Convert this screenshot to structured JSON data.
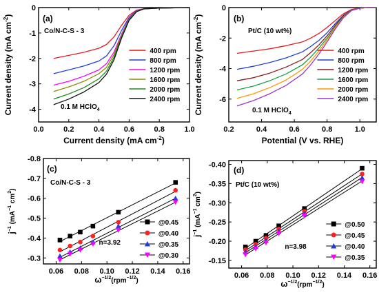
{
  "chart_data": [
    {
      "panel_label": "(a)",
      "type": "line",
      "annotation": "Co/N-C-S - 3",
      "electrolyte": "0.1 M HClO",
      "electrolyte_sub": "4",
      "xlabel": "Current density (mA cm",
      "xlabel_sup": "-2",
      "xlabel_tail": ")",
      "ylabel": "Current density (mA cm",
      "ylabel_sup": "-2",
      "ylabel_tail": ")",
      "xlim": [
        0.0,
        1.0
      ],
      "ylim": [
        -4.5,
        0
      ],
      "xticks": [
        0.0,
        0.2,
        0.4,
        0.6,
        0.8,
        1.0
      ],
      "xtick_labels": [
        "0.0",
        "0.2",
        "0.4",
        "0.6",
        "0.8",
        "1.0"
      ],
      "yticks": [
        0,
        -1,
        -2,
        -3,
        -4
      ],
      "ytick_labels": [
        "0",
        "-1",
        "-2",
        "-3",
        "-4"
      ],
      "legend_position": "right",
      "series": [
        {
          "name": "400 rpm",
          "color": "#e41a1c",
          "x": [
            0.1,
            0.2,
            0.3,
            0.4,
            0.45,
            0.5,
            0.55,
            0.6,
            0.65,
            0.7,
            0.8,
            0.9,
            1.0
          ],
          "y": [
            -2.0,
            -1.88,
            -1.76,
            -1.6,
            -1.45,
            -1.15,
            -0.7,
            -0.3,
            -0.1,
            -0.04,
            -0.02,
            -0.01,
            0
          ]
        },
        {
          "name": "800 rpm",
          "color": "#1f3fd8",
          "x": [
            0.1,
            0.2,
            0.3,
            0.4,
            0.45,
            0.5,
            0.55,
            0.6,
            0.65,
            0.7,
            0.8,
            0.9,
            1.0
          ],
          "y": [
            -2.6,
            -2.45,
            -2.3,
            -2.1,
            -1.9,
            -1.5,
            -0.9,
            -0.38,
            -0.12,
            -0.05,
            -0.02,
            -0.01,
            0
          ]
        },
        {
          "name": "1200 rpm",
          "color": "#ff00ff",
          "x": [
            0.1,
            0.2,
            0.3,
            0.4,
            0.45,
            0.5,
            0.55,
            0.6,
            0.65,
            0.7,
            0.8,
            0.9,
            1.0
          ],
          "y": [
            -3.05,
            -2.9,
            -2.7,
            -2.45,
            -2.2,
            -1.75,
            -1.05,
            -0.42,
            -0.13,
            -0.05,
            -0.02,
            -0.01,
            0
          ]
        },
        {
          "name": "1600 rpm",
          "color": "#8b8b00",
          "x": [
            0.1,
            0.2,
            0.3,
            0.4,
            0.45,
            0.5,
            0.55,
            0.6,
            0.65,
            0.7,
            0.8,
            0.9,
            1.0
          ],
          "y": [
            -3.3,
            -3.12,
            -2.9,
            -2.6,
            -2.35,
            -1.85,
            -1.1,
            -0.45,
            -0.14,
            -0.05,
            -0.02,
            -0.01,
            0
          ]
        },
        {
          "name": "2000 rpm",
          "color": "#228b22",
          "x": [
            0.1,
            0.2,
            0.3,
            0.4,
            0.45,
            0.5,
            0.55,
            0.6,
            0.65,
            0.7,
            0.8,
            0.9,
            1.0
          ],
          "y": [
            -3.6,
            -3.4,
            -3.15,
            -2.8,
            -2.5,
            -1.95,
            -1.15,
            -0.47,
            -0.15,
            -0.05,
            -0.02,
            -0.01,
            0
          ]
        },
        {
          "name": "2400 rpm",
          "color": "#111111",
          "x": [
            0.1,
            0.2,
            0.3,
            0.4,
            0.45,
            0.5,
            0.55,
            0.6,
            0.65,
            0.7,
            0.8,
            0.9,
            1.0
          ],
          "y": [
            -3.82,
            -3.6,
            -3.32,
            -2.95,
            -2.62,
            -2.05,
            -1.2,
            -0.5,
            -0.16,
            -0.05,
            -0.02,
            -0.01,
            0
          ]
        }
      ]
    },
    {
      "panel_label": "(b)",
      "type": "line",
      "annotation": "Pt/C (10 wt%)",
      "electrolyte": "0.1 M HClO",
      "electrolyte_sub": "4",
      "xlabel": "Potential (V vs. RHE)",
      "ylabel": "Current density (mA cm",
      "ylabel_sup": "-2",
      "ylabel_tail": ")",
      "xlim": [
        0.2,
        1.1
      ],
      "ylim": [
        -7.5,
        0
      ],
      "xticks": [
        0.2,
        0.4,
        0.6,
        0.8,
        1.0
      ],
      "xtick_labels": [
        "0.2",
        "0.4",
        "0.6",
        "0.8",
        "1.0"
      ],
      "yticks": [
        0,
        -2,
        -4,
        -6
      ],
      "ytick_labels": [
        "0",
        "-2",
        "-4",
        "-6"
      ],
      "legend_position": "right",
      "series": [
        {
          "name": "400 rpm",
          "color": "#e41a1c",
          "x": [
            0.25,
            0.35,
            0.45,
            0.55,
            0.65,
            0.7,
            0.75,
            0.8,
            0.85,
            0.9,
            0.95,
            1.0,
            1.05,
            1.1
          ],
          "y": [
            -3.0,
            -2.85,
            -2.7,
            -2.5,
            -2.25,
            -2.0,
            -1.7,
            -1.3,
            -0.85,
            -0.4,
            -0.12,
            -0.03,
            0,
            0
          ]
        },
        {
          "name": "800 rpm",
          "color": "#1f3fd8",
          "x": [
            0.25,
            0.35,
            0.45,
            0.55,
            0.65,
            0.7,
            0.75,
            0.8,
            0.85,
            0.9,
            0.95,
            1.0,
            1.05,
            1.1
          ],
          "y": [
            -4.05,
            -3.85,
            -3.6,
            -3.3,
            -2.9,
            -2.55,
            -2.15,
            -1.65,
            -1.05,
            -0.5,
            -0.15,
            -0.04,
            0,
            0
          ]
        },
        {
          "name": "1200 rpm",
          "color": "#8b1a1a",
          "x": [
            0.25,
            0.35,
            0.45,
            0.55,
            0.65,
            0.7,
            0.75,
            0.8,
            0.85,
            0.9,
            0.95,
            1.0,
            1.05,
            1.1
          ],
          "y": [
            -4.8,
            -4.6,
            -4.3,
            -3.9,
            -3.4,
            -2.95,
            -2.45,
            -1.85,
            -1.15,
            -0.55,
            -0.16,
            -0.04,
            0,
            0
          ]
        },
        {
          "name": "1600 rpm",
          "color": "#1a9e4a",
          "x": [
            0.25,
            0.35,
            0.45,
            0.55,
            0.65,
            0.7,
            0.75,
            0.8,
            0.85,
            0.9,
            0.95,
            1.0,
            1.05,
            1.1
          ],
          "y": [
            -5.4,
            -5.15,
            -4.8,
            -4.35,
            -3.75,
            -3.25,
            -2.65,
            -2.0,
            -1.25,
            -0.6,
            -0.17,
            -0.04,
            0,
            0
          ]
        },
        {
          "name": "2000 rpm",
          "color": "#ff9900",
          "x": [
            0.25,
            0.35,
            0.45,
            0.55,
            0.65,
            0.7,
            0.75,
            0.8,
            0.85,
            0.9,
            0.95,
            1.0,
            1.05,
            1.1
          ],
          "y": [
            -5.95,
            -5.65,
            -5.25,
            -4.75,
            -4.05,
            -3.5,
            -2.85,
            -2.12,
            -1.32,
            -0.63,
            -0.18,
            -0.04,
            0,
            0
          ]
        },
        {
          "name": "2400 rpm",
          "color": "#9933cc",
          "x": [
            0.25,
            0.35,
            0.45,
            0.55,
            0.65,
            0.7,
            0.75,
            0.8,
            0.85,
            0.9,
            0.95,
            1.0,
            1.05,
            1.1
          ],
          "y": [
            -6.45,
            -6.1,
            -5.65,
            -5.1,
            -4.35,
            -3.75,
            -3.05,
            -2.25,
            -1.4,
            -0.66,
            -0.19,
            -0.04,
            0,
            0
          ]
        }
      ]
    },
    {
      "panel_label": "(c)",
      "type": "scatter",
      "annotation": "Co/N-C-S - 3",
      "note": "n=3.92",
      "xlabel": "ω",
      "xlabel_sup": "−1/2",
      "xlabel_tail": "(rpm",
      "xlabel_sup2": "−1/2",
      "xlabel_tail2": ")",
      "ylabel": "j",
      "ylabel_sup": "−1",
      "ylabel_mid": " (mA",
      "ylabel_sup2": "−1",
      "ylabel_mid2": " cm",
      "ylabel_sup3": "2",
      "ylabel_tail": ")",
      "xlim": [
        0.05,
        0.165
      ],
      "ylim": [
        -0.27,
        -0.8
      ],
      "xticks": [
        0.06,
        0.08,
        0.1,
        0.12,
        0.14,
        0.16
      ],
      "xtick_labels": [
        "0.06",
        "0.08",
        "0.10",
        "0.12",
        "0.14",
        "0.16"
      ],
      "yticks": [
        -0.3,
        -0.4,
        -0.5,
        -0.6,
        -0.7,
        -0.8
      ],
      "ytick_labels": [
        "-0.3",
        "-0.4",
        "-0.5",
        "-0.6",
        "-0.7",
        "-0.8"
      ],
      "legend_position": "right",
      "x": [
        0.063,
        0.071,
        0.079,
        0.089,
        0.109,
        0.154
      ],
      "series": [
        {
          "name": "@0.45",
          "color": "#000000",
          "marker": "square",
          "values": [
            -0.39,
            -0.41,
            -0.43,
            -0.46,
            -0.53,
            -0.68
          ]
        },
        {
          "name": "@0.40",
          "color": "#ff2020",
          "marker": "circle",
          "values": [
            -0.34,
            -0.36,
            -0.38,
            -0.41,
            -0.48,
            -0.64
          ]
        },
        {
          "name": "@0.35",
          "color": "#1f3fd8",
          "marker": "triangle-up",
          "values": [
            -0.31,
            -0.33,
            -0.35,
            -0.38,
            -0.46,
            -0.6
          ]
        },
        {
          "name": "@0.30",
          "color": "#ff00ff",
          "marker": "triangle-down",
          "values": [
            -0.29,
            -0.32,
            -0.34,
            -0.37,
            -0.44,
            -0.58
          ]
        }
      ]
    },
    {
      "panel_label": "(d)",
      "type": "scatter",
      "annotation": "Pt/C (10 wt%)",
      "note": "n=3.98",
      "xlabel": "ω",
      "xlabel_sup": "−1/2",
      "xlabel_tail": "(rpm",
      "xlabel_sup2": "−1/2",
      "xlabel_tail2": ")",
      "ylabel": "j",
      "ylabel_sup": "−1",
      "ylabel_mid": " (mA",
      "ylabel_sup2": "−1",
      "ylabel_mid2": " cm",
      "ylabel_sup3": "2",
      "ylabel_tail": ")",
      "xlim": [
        0.05,
        0.165
      ],
      "ylim": [
        -0.13,
        -0.41
      ],
      "xticks": [
        0.06,
        0.08,
        0.1,
        0.12,
        0.14,
        0.16
      ],
      "xtick_labels": [
        "0.06",
        "0.08",
        "0.10",
        "0.12",
        "0.14",
        "0.16"
      ],
      "yticks": [
        -0.15,
        -0.2,
        -0.25,
        -0.3,
        -0.35,
        -0.4
      ],
      "ytick_labels": [
        "-0.15",
        "-0.20",
        "-0.25",
        "-0.30",
        "-0.35",
        "-0.40"
      ],
      "legend_position": "right",
      "x": [
        0.063,
        0.071,
        0.079,
        0.089,
        0.109,
        0.154
      ],
      "series": [
        {
          "name": "@0.50",
          "color": "#000000",
          "marker": "square",
          "values": [
            -0.185,
            -0.2,
            -0.215,
            -0.24,
            -0.285,
            -0.39
          ]
        },
        {
          "name": "@0.45",
          "color": "#ff2020",
          "marker": "circle",
          "values": [
            -0.178,
            -0.192,
            -0.208,
            -0.232,
            -0.278,
            -0.375
          ]
        },
        {
          "name": "@0.40",
          "color": "#1f3fd8",
          "marker": "triangle-up",
          "values": [
            -0.172,
            -0.186,
            -0.202,
            -0.226,
            -0.272,
            -0.365
          ]
        },
        {
          "name": "@0.35",
          "color": "#ff00ff",
          "marker": "triangle-down",
          "values": [
            -0.165,
            -0.18,
            -0.196,
            -0.22,
            -0.266,
            -0.355
          ]
        }
      ]
    }
  ]
}
